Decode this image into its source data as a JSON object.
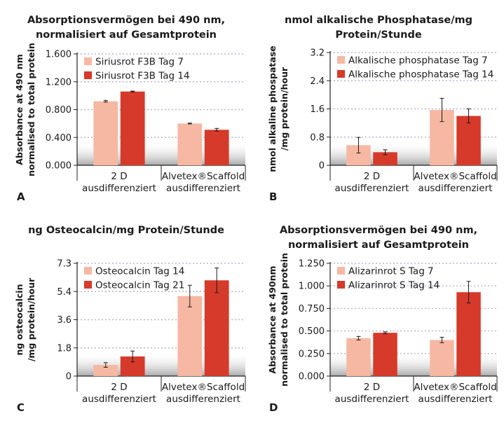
{
  "palette": {
    "light": "#f6b8a2",
    "dark": "#d63a2a",
    "grid": "#b9b2d8",
    "axis": "#222222",
    "text": "#1a1a1a"
  },
  "chart_data": [
    {
      "panel": "A",
      "type": "bar",
      "title": "Absorptionsvermögen bei 490 nm,",
      "title2": "normalisiert auf Gesamtprotein",
      "ylabel": "Absorbance at 490 nm",
      "ylabel2": "normalised to total protein",
      "ylim": [
        0,
        1.6
      ],
      "yticks": [
        "0.000",
        "0.400",
        "0.800",
        "1.200",
        "1.600"
      ],
      "categories": [
        {
          "line1": "2 D",
          "line2": "ausdifferenziert"
        },
        {
          "line1": "Alvetex®Scaffold",
          "line2": "ausdifferenziert"
        }
      ],
      "series": [
        {
          "name": "Siriusrot F3B Tag 7",
          "values": [
            0.92,
            0.6
          ],
          "errors": [
            0.012,
            0.006
          ]
        },
        {
          "name": "Siriusrot F3B Tag 14",
          "values": [
            1.06,
            0.51
          ],
          "errors": [
            0.006,
            0.02
          ]
        }
      ]
    },
    {
      "panel": "B",
      "type": "bar",
      "title": "nmol alkalische Phosphatase/mg",
      "title2": "Protein/Stunde",
      "ylabel": "nmol alkaline phospatase",
      "ylabel2": "/mg protein/hour",
      "ylim": [
        0,
        3.2
      ],
      "yticks": [
        "0",
        "0.8",
        "1.6",
        "2.4",
        "3.2"
      ],
      "categories": [
        {
          "line1": "2 D",
          "line2": "ausdifferenziert"
        },
        {
          "line1": "Alvetex®Scaffold",
          "line2": "ausdifferenziert"
        }
      ],
      "series": [
        {
          "name": "Alkalische phosphatase Tag 7",
          "values": [
            0.57,
            1.57
          ],
          "errors": [
            0.22,
            0.33
          ]
        },
        {
          "name": "Alkalische phosphatase Tag 14",
          "values": [
            0.37,
            1.4
          ],
          "errors": [
            0.07,
            0.2
          ]
        }
      ]
    },
    {
      "panel": "C",
      "type": "bar",
      "title": "ng Osteocalcin/mg Protein/Stunde",
      "title2": "",
      "ylabel": "ng osteocalcin",
      "ylabel2": "/mg protein/hour",
      "ylim": [
        0,
        7.3
      ],
      "yticks": [
        "0",
        "1.8",
        "3.6",
        "5.4",
        "7.3"
      ],
      "categories": [
        {
          "line1": "2 D",
          "line2": "ausdifferenziert"
        },
        {
          "line1": "Alvetex®Scaffold",
          "line2": "ausdifferenziert"
        }
      ],
      "series": [
        {
          "name": "Osteocalcin Tag 14",
          "values": [
            0.72,
            5.18
          ],
          "errors": [
            0.15,
            0.7
          ]
        },
        {
          "name": "Osteocalcin Tag 21",
          "values": [
            1.27,
            6.2
          ],
          "errors": [
            0.35,
            0.8
          ]
        }
      ]
    },
    {
      "panel": "D",
      "type": "bar",
      "title": "Absorptionsvermögen bei 490 nm,",
      "title2": "normalisiert auf Gesamtprotein",
      "ylabel": "Absorbance at 490nm",
      "ylabel2": "normalised to total protein",
      "ylim": [
        0,
        1.25
      ],
      "yticks": [
        "0.000",
        "0.250",
        "0.500",
        "0.750",
        "1.000",
        "1.250"
      ],
      "categories": [
        {
          "line1": "2 D",
          "line2": "ausdifferenziert"
        },
        {
          "line1": "Alvetex®Scaffold",
          "line2": "ausdifferenziert"
        }
      ],
      "series": [
        {
          "name": "Alizarinrot S Tag 7",
          "values": [
            0.42,
            0.4
          ],
          "errors": [
            0.02,
            0.03
          ]
        },
        {
          "name": "Alizarinrot S Tag 14",
          "values": [
            0.48,
            0.93
          ],
          "errors": [
            0.01,
            0.12
          ]
        }
      ]
    }
  ]
}
